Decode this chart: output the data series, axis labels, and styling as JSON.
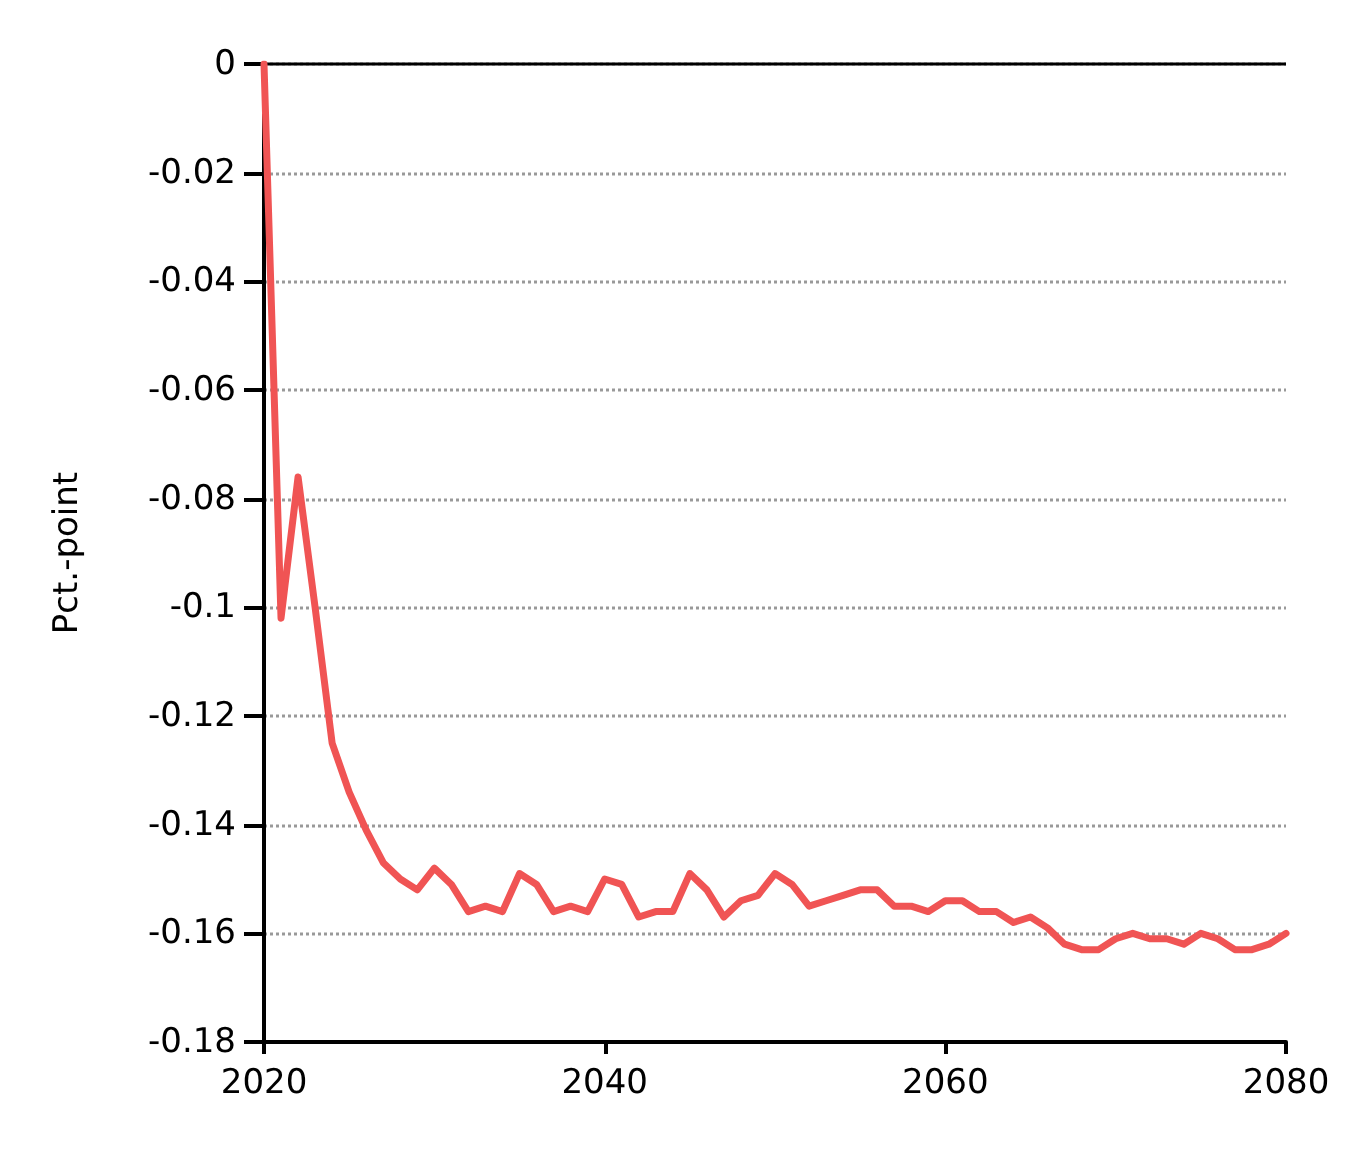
{
  "chart_data": {
    "type": "line",
    "ylabel": "Pct.-point",
    "x": [
      2020,
      2021,
      2022,
      2023,
      2024,
      2025,
      2026,
      2027,
      2028,
      2029,
      2030,
      2031,
      2032,
      2033,
      2034,
      2035,
      2036,
      2037,
      2038,
      2039,
      2040,
      2041,
      2042,
      2043,
      2044,
      2045,
      2046,
      2047,
      2048,
      2049,
      2050,
      2051,
      2052,
      2053,
      2054,
      2055,
      2056,
      2057,
      2058,
      2059,
      2060,
      2061,
      2062,
      2063,
      2064,
      2065,
      2066,
      2067,
      2068,
      2069,
      2070,
      2071,
      2072,
      2073,
      2074,
      2075,
      2076,
      2077,
      2078,
      2079,
      2080
    ],
    "series": [
      {
        "color": "#f05454",
        "values": [
          0,
          -0.102,
          -0.076,
          -0.1,
          -0.125,
          -0.134,
          -0.141,
          -0.147,
          -0.15,
          -0.152,
          -0.148,
          -0.151,
          -0.156,
          -0.155,
          -0.156,
          -0.149,
          -0.151,
          -0.156,
          -0.155,
          -0.156,
          -0.15,
          -0.151,
          -0.157,
          -0.156,
          -0.156,
          -0.149,
          -0.152,
          -0.157,
          -0.154,
          -0.153,
          -0.149,
          -0.151,
          -0.155,
          -0.154,
          -0.153,
          -0.152,
          -0.152,
          -0.155,
          -0.155,
          -0.156,
          -0.154,
          -0.154,
          -0.156,
          -0.156,
          -0.158,
          -0.157,
          -0.159,
          -0.162,
          -0.163,
          -0.163,
          -0.161,
          -0.16,
          -0.161,
          -0.161,
          -0.162,
          -0.16,
          -0.161,
          -0.163,
          -0.163,
          -0.162,
          -0.16
        ]
      }
    ],
    "xlim": [
      2020,
      2080
    ],
    "xticks": [
      2020,
      2040,
      2060,
      2080
    ],
    "ylim": [
      -0.18,
      0
    ],
    "yticks": [
      -0.18,
      -0.16,
      -0.14,
      -0.12,
      -0.1,
      -0.08,
      -0.06,
      -0.04,
      -0.02,
      0
    ],
    "grid": "y",
    "marker": "none",
    "line_style": "solid",
    "ref_lines": [
      {
        "axis": "y",
        "value": 0,
        "color": "#000000",
        "line_style": "solid"
      }
    ]
  }
}
